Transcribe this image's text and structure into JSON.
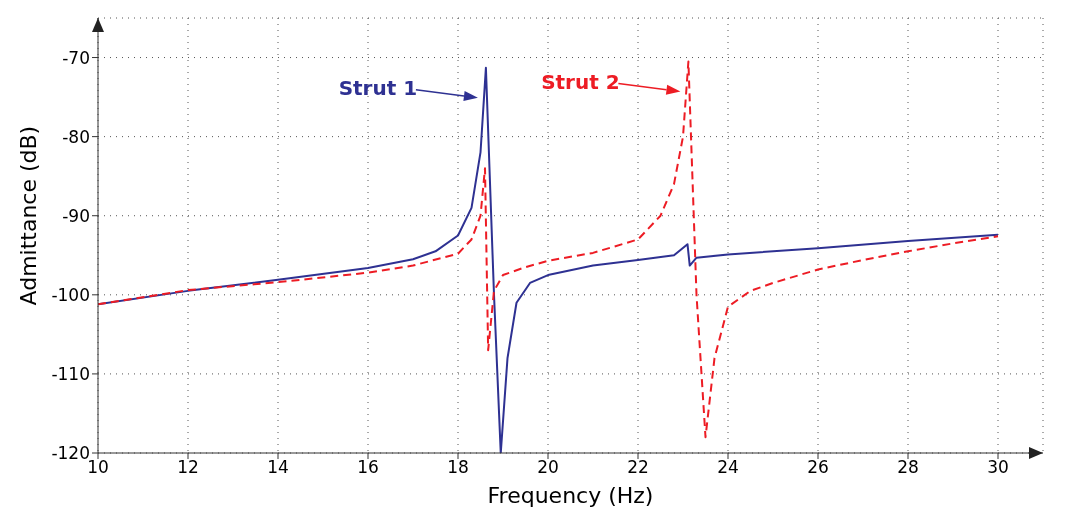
{
  "chart_data": {
    "type": "line",
    "xlabel": "Frequency (Hz)",
    "ylabel": "Admittance (dB)",
    "xlim": [
      10,
      31
    ],
    "ylim": [
      -120,
      -65
    ],
    "xticks": [
      10,
      12,
      14,
      16,
      18,
      20,
      22,
      24,
      26,
      28,
      30
    ],
    "yticks": [
      -120,
      -110,
      -100,
      -90,
      -80,
      -70
    ],
    "grid": true,
    "marker": "none",
    "series": [
      {
        "color": "#2e3192",
        "line_style": "solid",
        "x": [
          10,
          12,
          14,
          16,
          17,
          17.5,
          18,
          18.3,
          18.5,
          18.62,
          18.8,
          18.95,
          19.1,
          19.3,
          19.6,
          20,
          21,
          22,
          22.8,
          23.1,
          23.15,
          23.3,
          24,
          26,
          28,
          30
        ],
        "values": [
          -101.2,
          -99.5,
          -98.1,
          -96.6,
          -95.5,
          -94.5,
          -92.5,
          -89,
          -82,
          -71.3,
          -100,
          -120,
          -108,
          -101,
          -98.5,
          -97.5,
          -96.3,
          -95.6,
          -95,
          -93.6,
          -96.3,
          -95.3,
          -94.9,
          -94.1,
          -93.2,
          -92.4
        ]
      },
      {
        "color": "#ed1c24",
        "line_style": "dashed",
        "x": [
          10,
          12,
          14,
          16,
          17,
          18,
          18.3,
          18.5,
          18.6,
          18.67,
          18.8,
          19,
          19.5,
          20,
          21,
          22,
          22.5,
          22.8,
          23,
          23.12,
          23.3,
          23.5,
          23.7,
          24,
          24.5,
          25,
          26,
          27,
          28,
          29,
          30
        ],
        "values": [
          -101.2,
          -99.4,
          -98.4,
          -97.2,
          -96.3,
          -94.8,
          -93,
          -90,
          -84,
          -107,
          -99.5,
          -97.5,
          -96.5,
          -95.7,
          -94.7,
          -93,
          -90,
          -86,
          -80,
          -70.5,
          -100,
          -118,
          -108,
          -101.5,
          -99.5,
          -98.5,
          -96.8,
          -95.6,
          -94.5,
          -93.5,
          -92.6
        ]
      }
    ],
    "annotations": [
      "Strut 1",
      "Strut 2"
    ]
  }
}
